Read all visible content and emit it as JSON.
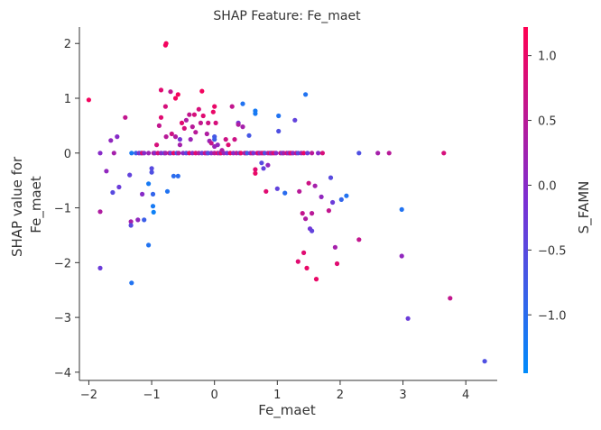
{
  "chart_data": {
    "type": "scatter",
    "title": "SHAP Feature: Fe_maet",
    "xlabel": "Fe_maet",
    "ylabel_lines": [
      "SHAP value for",
      "Fe_maet"
    ],
    "xlim": [
      -2.15,
      4.5
    ],
    "ylim": [
      -4.15,
      2.3
    ],
    "xticks": [
      -2,
      -1,
      0,
      1,
      2,
      3,
      4
    ],
    "yticks": [
      2,
      1,
      0,
      -1,
      -2,
      -3,
      -4
    ],
    "grid": false,
    "legend": "none",
    "colorbar": {
      "label": "S_FAMN",
      "min": -1.45,
      "max": 1.22,
      "ticks": [
        1.0,
        0.5,
        0.0,
        -0.5,
        -1.0
      ],
      "tick_labels": [
        "1.0",
        "0.5",
        "0.0",
        "−0.5",
        "−1.0"
      ],
      "low_color": "#008bfb",
      "high_color": "#ff0052"
    },
    "points": [
      {
        "x": -2.0,
        "y": 0.97,
        "c": 1.1
      },
      {
        "x": -1.82,
        "y": 0.0,
        "c": 0.0
      },
      {
        "x": -1.82,
        "y": -1.07,
        "c": 0.4
      },
      {
        "x": -1.82,
        "y": -2.1,
        "c": -0.3
      },
      {
        "x": -1.72,
        "y": -0.33,
        "c": 0.1
      },
      {
        "x": -1.65,
        "y": 0.23,
        "c": 0.1
      },
      {
        "x": -1.62,
        "y": -0.72,
        "c": -0.5
      },
      {
        "x": -1.6,
        "y": 0.0,
        "c": 0.3
      },
      {
        "x": -1.55,
        "y": 0.3,
        "c": 0.0
      },
      {
        "x": -1.52,
        "y": -0.62,
        "c": -0.3
      },
      {
        "x": -1.42,
        "y": 0.65,
        "c": 0.6
      },
      {
        "x": -1.35,
        "y": -0.4,
        "c": -0.4
      },
      {
        "x": -1.33,
        "y": -1.25,
        "c": 0.3
      },
      {
        "x": -1.33,
        "y": -1.32,
        "c": -0.5
      },
      {
        "x": -1.32,
        "y": -2.37,
        "c": -1.1
      },
      {
        "x": -1.32,
        "y": 0.0,
        "c": -1.2
      },
      {
        "x": -1.25,
        "y": 0.0,
        "c": -0.8
      },
      {
        "x": -1.22,
        "y": -1.22,
        "c": 0.1
      },
      {
        "x": -1.2,
        "y": 0.0,
        "c": 0.0
      },
      {
        "x": -1.17,
        "y": 0.0,
        "c": -0.5
      },
      {
        "x": -1.15,
        "y": 0.0,
        "c": 1.0
      },
      {
        "x": -1.12,
        "y": 0.0,
        "c": 0.0
      },
      {
        "x": -1.15,
        "y": -0.75,
        "c": 0.0
      },
      {
        "x": -1.12,
        "y": -1.22,
        "c": -0.8
      },
      {
        "x": -1.05,
        "y": -0.56,
        "c": -1.2
      },
      {
        "x": -1.05,
        "y": -1.68,
        "c": -1.1
      },
      {
        "x": -1.05,
        "y": 0.0,
        "c": 0.2
      },
      {
        "x": -1.0,
        "y": -0.28,
        "c": -0.5
      },
      {
        "x": -1.0,
        "y": -0.35,
        "c": -0.6
      },
      {
        "x": -0.98,
        "y": -0.75,
        "c": -0.9
      },
      {
        "x": -0.98,
        "y": -0.97,
        "c": -1.2
      },
      {
        "x": -0.97,
        "y": -1.08,
        "c": -1.3
      },
      {
        "x": -0.97,
        "y": 0.0,
        "c": 0.5
      },
      {
        "x": -0.95,
        "y": 0.0,
        "c": 0.0
      },
      {
        "x": -0.9,
        "y": 0.0,
        "c": 0.8
      },
      {
        "x": -0.92,
        "y": 0.15,
        "c": 0.8
      },
      {
        "x": -0.88,
        "y": 0.5,
        "c": 0.6
      },
      {
        "x": -0.85,
        "y": 0.65,
        "c": 0.9
      },
      {
        "x": -0.85,
        "y": 1.15,
        "c": 0.9
      },
      {
        "x": -0.85,
        "y": 0.0,
        "c": 0.0
      },
      {
        "x": -0.8,
        "y": 0.0,
        "c": -0.5
      },
      {
        "x": -0.78,
        "y": 0.0,
        "c": 0.3
      },
      {
        "x": -0.78,
        "y": 1.97,
        "c": 1.1
      },
      {
        "x": -0.77,
        "y": 2.0,
        "c": 1.1
      },
      {
        "x": -0.77,
        "y": 0.3,
        "c": 0.5
      },
      {
        "x": -0.78,
        "y": 0.85,
        "c": 0.8
      },
      {
        "x": -0.75,
        "y": -0.7,
        "c": -1.1
      },
      {
        "x": -0.72,
        "y": 0.0,
        "c": 0.7
      },
      {
        "x": -0.7,
        "y": 1.12,
        "c": 0.6
      },
      {
        "x": -0.7,
        "y": 0.0,
        "c": -0.3
      },
      {
        "x": -0.68,
        "y": 0.35,
        "c": 0.7
      },
      {
        "x": -0.65,
        "y": 0.0,
        "c": 1.0
      },
      {
        "x": -0.65,
        "y": -0.42,
        "c": -1.0
      },
      {
        "x": -0.62,
        "y": 0.3,
        "c": 0.4
      },
      {
        "x": -0.62,
        "y": 1.0,
        "c": 1.1
      },
      {
        "x": -0.6,
        "y": 0.0,
        "c": -0.6
      },
      {
        "x": -0.58,
        "y": -0.42,
        "c": -1.0
      },
      {
        "x": -0.58,
        "y": 1.07,
        "c": 1.1
      },
      {
        "x": -0.57,
        "y": 0.0,
        "c": 0.5
      },
      {
        "x": -0.55,
        "y": 0.25,
        "c": -0.2
      },
      {
        "x": -0.55,
        "y": 0.15,
        "c": 0.3
      },
      {
        "x": -0.52,
        "y": 0.55,
        "c": 0.9
      },
      {
        "x": -0.5,
        "y": 0.0,
        "c": 0.0
      },
      {
        "x": -0.48,
        "y": 0.45,
        "c": 0.8
      },
      {
        "x": -0.45,
        "y": 0.0,
        "c": -0.5
      },
      {
        "x": -0.45,
        "y": 0.6,
        "c": 0.4
      },
      {
        "x": -0.4,
        "y": 0.7,
        "c": 0.6
      },
      {
        "x": -0.4,
        "y": 0.0,
        "c": 1.0
      },
      {
        "x": -0.38,
        "y": 0.25,
        "c": 0.2
      },
      {
        "x": -0.35,
        "y": 0.48,
        "c": 0.5
      },
      {
        "x": -0.35,
        "y": 0.0,
        "c": 0.0
      },
      {
        "x": -0.32,
        "y": 0.7,
        "c": 0.8
      },
      {
        "x": -0.3,
        "y": 0.38,
        "c": 0.5
      },
      {
        "x": -0.3,
        "y": 0.0,
        "c": 0.9
      },
      {
        "x": -0.25,
        "y": 0.8,
        "c": 0.8
      },
      {
        "x": -0.25,
        "y": 0.0,
        "c": 0.4
      },
      {
        "x": -0.22,
        "y": 0.55,
        "c": 0.6
      },
      {
        "x": -0.2,
        "y": 1.13,
        "c": 1.1
      },
      {
        "x": -0.2,
        "y": 0.0,
        "c": -0.3
      },
      {
        "x": -0.18,
        "y": 0.68,
        "c": 0.9
      },
      {
        "x": -0.15,
        "y": 0.0,
        "c": 0.7
      },
      {
        "x": -0.12,
        "y": 0.35,
        "c": 0.4
      },
      {
        "x": -0.12,
        "y": 0.0,
        "c": 0.3
      },
      {
        "x": -0.1,
        "y": 0.55,
        "c": 0.7
      },
      {
        "x": -0.1,
        "y": 0.0,
        "c": -0.6
      },
      {
        "x": -0.08,
        "y": 0.22,
        "c": 0.2
      },
      {
        "x": -0.05,
        "y": 0.18,
        "c": 0.6
      },
      {
        "x": -0.05,
        "y": 0.0,
        "c": 0.0
      },
      {
        "x": -0.02,
        "y": 0.75,
        "c": 1.0
      },
      {
        "x": 0.0,
        "y": 0.3,
        "c": -0.7
      },
      {
        "x": 0.0,
        "y": 0.25,
        "c": -0.8
      },
      {
        "x": 0.0,
        "y": 0.12,
        "c": 0.2
      },
      {
        "x": 0.0,
        "y": 0.0,
        "c": 0.5
      },
      {
        "x": 0.0,
        "y": 0.85,
        "c": 1.0
      },
      {
        "x": 0.02,
        "y": 0.55,
        "c": 0.8
      },
      {
        "x": 0.05,
        "y": 0.15,
        "c": 0.1
      },
      {
        "x": 0.05,
        "y": 0.0,
        "c": 0.9
      },
      {
        "x": 0.08,
        "y": 0.0,
        "c": -0.4
      },
      {
        "x": 0.1,
        "y": 0.0,
        "c": 1.0
      },
      {
        "x": 0.12,
        "y": 0.05,
        "c": 0.4
      },
      {
        "x": 0.15,
        "y": 0.0,
        "c": 0.2
      },
      {
        "x": 0.18,
        "y": 0.25,
        "c": 0.7
      },
      {
        "x": 0.2,
        "y": 0.0,
        "c": -0.3
      },
      {
        "x": 0.22,
        "y": 0.15,
        "c": 0.9
      },
      {
        "x": 0.25,
        "y": 0.0,
        "c": 1.1
      },
      {
        "x": 0.28,
        "y": 0.85,
        "c": 0.6
      },
      {
        "x": 0.3,
        "y": 0.0,
        "c": 0.0
      },
      {
        "x": 0.32,
        "y": 0.25,
        "c": 0.7
      },
      {
        "x": 0.35,
        "y": 0.0,
        "c": 0.5
      },
      {
        "x": 0.38,
        "y": 0.55,
        "c": -0.2
      },
      {
        "x": 0.38,
        "y": 0.52,
        "c": 0.4
      },
      {
        "x": 0.4,
        "y": 0.0,
        "c": -0.5
      },
      {
        "x": 0.42,
        "y": 0.0,
        "c": 1.0
      },
      {
        "x": 0.45,
        "y": 0.9,
        "c": -1.1
      },
      {
        "x": 0.45,
        "y": 0.48,
        "c": 0.3
      },
      {
        "x": 0.48,
        "y": 0.0,
        "c": 0.1
      },
      {
        "x": 0.5,
        "y": 0.0,
        "c": 0.7
      },
      {
        "x": 0.52,
        "y": 0.0,
        "c": -0.8
      },
      {
        "x": 0.55,
        "y": 0.32,
        "c": -0.7
      },
      {
        "x": 0.57,
        "y": 0.0,
        "c": 0.0
      },
      {
        "x": 0.6,
        "y": 0.0,
        "c": 0.9
      },
      {
        "x": 0.62,
        "y": 0.0,
        "c": -0.2
      },
      {
        "x": 0.65,
        "y": 0.77,
        "c": -1.2
      },
      {
        "x": 0.65,
        "y": 0.72,
        "c": -1.2
      },
      {
        "x": 0.65,
        "y": -0.3,
        "c": 0.9
      },
      {
        "x": 0.65,
        "y": -0.37,
        "c": 1.0
      },
      {
        "x": 0.68,
        "y": 0.0,
        "c": 0.4
      },
      {
        "x": 0.7,
        "y": 0.0,
        "c": 1.1
      },
      {
        "x": 0.72,
        "y": 0.0,
        "c": 0.0
      },
      {
        "x": 0.75,
        "y": -0.18,
        "c": -0.5
      },
      {
        "x": 0.75,
        "y": 0.0,
        "c": 0.6
      },
      {
        "x": 0.78,
        "y": -0.28,
        "c": -0.4
      },
      {
        "x": 0.78,
        "y": 0.0,
        "c": 1.0
      },
      {
        "x": 0.8,
        "y": 0.0,
        "c": -0.6
      },
      {
        "x": 0.82,
        "y": -0.7,
        "c": 0.9
      },
      {
        "x": 0.85,
        "y": 0.0,
        "c": 0.3
      },
      {
        "x": 0.85,
        "y": -0.22,
        "c": 0.1
      },
      {
        "x": 0.88,
        "y": 0.0,
        "c": 0.9
      },
      {
        "x": 0.9,
        "y": 0.0,
        "c": -0.2
      },
      {
        "x": 0.92,
        "y": 0.0,
        "c": 0.5
      },
      {
        "x": 0.95,
        "y": 0.0,
        "c": 1.0
      },
      {
        "x": 0.98,
        "y": 0.0,
        "c": 0.0
      },
      {
        "x": 1.0,
        "y": -0.65,
        "c": -0.4
      },
      {
        "x": 1.02,
        "y": 0.68,
        "c": -1.1
      },
      {
        "x": 1.02,
        "y": 0.4,
        "c": -0.6
      },
      {
        "x": 1.05,
        "y": 0.0,
        "c": 0.7
      },
      {
        "x": 1.08,
        "y": 0.0,
        "c": -0.4
      },
      {
        "x": 1.1,
        "y": 0.0,
        "c": 0.3
      },
      {
        "x": 1.12,
        "y": -0.73,
        "c": -1.0
      },
      {
        "x": 1.15,
        "y": 0.0,
        "c": 0.8
      },
      {
        "x": 1.18,
        "y": 0.0,
        "c": -0.2
      },
      {
        "x": 1.2,
        "y": 0.0,
        "c": 0.5
      },
      {
        "x": 1.22,
        "y": 0.0,
        "c": 1.0
      },
      {
        "x": 1.25,
        "y": 0.0,
        "c": 0.0
      },
      {
        "x": 1.28,
        "y": 0.6,
        "c": -0.4
      },
      {
        "x": 1.3,
        "y": 0.0,
        "c": 0.6
      },
      {
        "x": 1.33,
        "y": 0.0,
        "c": -0.5
      },
      {
        "x": 1.33,
        "y": -1.98,
        "c": 0.9
      },
      {
        "x": 1.35,
        "y": -0.7,
        "c": 0.5
      },
      {
        "x": 1.38,
        "y": 0.0,
        "c": 0.2
      },
      {
        "x": 1.4,
        "y": -1.1,
        "c": 0.6
      },
      {
        "x": 1.42,
        "y": -1.82,
        "c": 0.9
      },
      {
        "x": 1.42,
        "y": 0.0,
        "c": 1.0
      },
      {
        "x": 1.45,
        "y": 1.07,
        "c": -1.1
      },
      {
        "x": 1.45,
        "y": -1.2,
        "c": 0.4
      },
      {
        "x": 1.47,
        "y": -2.1,
        "c": 1.0
      },
      {
        "x": 1.48,
        "y": 0.0,
        "c": -0.3
      },
      {
        "x": 1.5,
        "y": -0.55,
        "c": 0.7
      },
      {
        "x": 1.52,
        "y": -1.38,
        "c": -0.2
      },
      {
        "x": 1.55,
        "y": -1.42,
        "c": -0.4
      },
      {
        "x": 1.55,
        "y": -1.1,
        "c": 0.5
      },
      {
        "x": 1.55,
        "y": 0.0,
        "c": 0.5
      },
      {
        "x": 1.6,
        "y": -0.6,
        "c": 0.3
      },
      {
        "x": 1.62,
        "y": -2.3,
        "c": 1.0
      },
      {
        "x": 1.65,
        "y": 0.0,
        "c": 0.0
      },
      {
        "x": 1.7,
        "y": -0.8,
        "c": 0.1
      },
      {
        "x": 1.72,
        "y": 0.0,
        "c": 0.8
      },
      {
        "x": 1.82,
        "y": -1.05,
        "c": 0.6
      },
      {
        "x": 1.85,
        "y": -0.45,
        "c": -0.5
      },
      {
        "x": 1.88,
        "y": -0.9,
        "c": -0.3
      },
      {
        "x": 1.92,
        "y": -1.72,
        "c": 0.3
      },
      {
        "x": 1.95,
        "y": -2.02,
        "c": 0.9
      },
      {
        "x": 2.02,
        "y": -0.85,
        "c": -0.9
      },
      {
        "x": 2.1,
        "y": -0.78,
        "c": -1.1
      },
      {
        "x": 2.3,
        "y": 0.0,
        "c": -0.6
      },
      {
        "x": 2.3,
        "y": -1.58,
        "c": 0.6
      },
      {
        "x": 2.6,
        "y": 0.0,
        "c": 0.3
      },
      {
        "x": 2.78,
        "y": 0.0,
        "c": 0.5
      },
      {
        "x": 2.98,
        "y": -1.03,
        "c": -1.1
      },
      {
        "x": 2.98,
        "y": -1.88,
        "c": 0.1
      },
      {
        "x": 3.08,
        "y": -3.02,
        "c": -0.3
      },
      {
        "x": 3.65,
        "y": 0.0,
        "c": 0.8
      },
      {
        "x": 3.75,
        "y": -2.65,
        "c": 0.6
      },
      {
        "x": 4.3,
        "y": -3.8,
        "c": -0.6
      }
    ]
  }
}
